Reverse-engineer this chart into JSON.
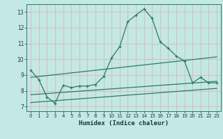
{
  "xlabel": "Humidex (Indice chaleur)",
  "bg_color": "#c4e8e4",
  "grid_color": "#d4b8b8",
  "line_color": "#2a7a6a",
  "spine_color": "#2a7a6a",
  "xlim": [
    -0.5,
    23.5
  ],
  "ylim": [
    6.7,
    13.5
  ],
  "xticks": [
    0,
    1,
    2,
    3,
    4,
    5,
    6,
    7,
    8,
    9,
    10,
    11,
    12,
    13,
    14,
    15,
    16,
    17,
    18,
    19,
    20,
    21,
    22,
    23
  ],
  "yticks": [
    7,
    8,
    9,
    10,
    11,
    12,
    13
  ],
  "line1_x": [
    0,
    1,
    2,
    3,
    4,
    5,
    6,
    7,
    8,
    9,
    10,
    11,
    12,
    13,
    14,
    15,
    16,
    17,
    18,
    19,
    20,
    21,
    22,
    23
  ],
  "line1_y": [
    9.3,
    8.7,
    7.6,
    7.2,
    8.35,
    8.2,
    8.3,
    8.3,
    8.4,
    8.9,
    10.1,
    10.8,
    12.4,
    12.8,
    13.2,
    12.6,
    11.1,
    10.7,
    10.2,
    9.9,
    8.5,
    8.85,
    8.5,
    8.5
  ],
  "line2_x": [
    0,
    23
  ],
  "line2_y": [
    8.85,
    10.15
  ],
  "line3_x": [
    0,
    23
  ],
  "line3_y": [
    7.75,
    8.6
  ],
  "line4_x": [
    0,
    23
  ],
  "line4_y": [
    7.25,
    8.15
  ]
}
